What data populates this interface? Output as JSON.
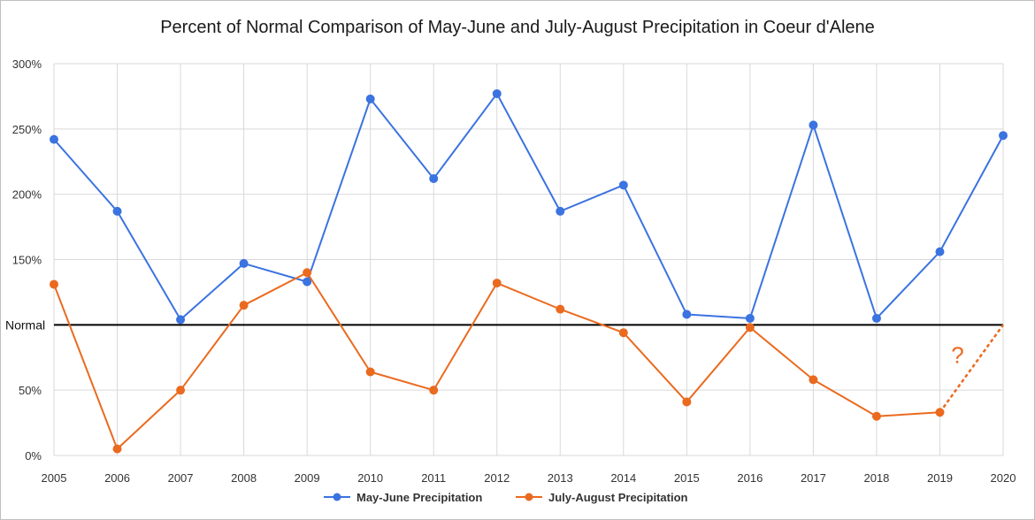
{
  "chart_data": {
    "type": "line",
    "title": "Percent of Normal Comparison of May-June and July-August Precipitation in Coeur d'Alene",
    "x": [
      "2005",
      "2006",
      "2007",
      "2008",
      "2009",
      "2010",
      "2011",
      "2012",
      "2013",
      "2014",
      "2015",
      "2016",
      "2017",
      "2018",
      "2019",
      "2020"
    ],
    "y_ticks": [
      "0%",
      "50%",
      "Normal",
      "150%",
      "200%",
      "250%",
      "300%"
    ],
    "ylim": [
      0,
      300
    ],
    "grid": "vertical and horizontal",
    "legend_position": "bottom",
    "series": [
      {
        "name": "May-June Precipitation",
        "color": "#3b73e0",
        "values": [
          242,
          187,
          104,
          147,
          133,
          273,
          212,
          277,
          187,
          207,
          108,
          105,
          253,
          105,
          156,
          245
        ]
      },
      {
        "name": "July-August Precipitation",
        "color": "#ea6a1f",
        "values": [
          131,
          5,
          50,
          115,
          140,
          64,
          50,
          132,
          112,
          94,
          41,
          98,
          58,
          30,
          33,
          null
        ]
      }
    ],
    "normal_line": {
      "label": "Normal",
      "value": 100,
      "color": "#000000"
    },
    "projection": {
      "from_x": "2019",
      "from_value": 33,
      "to_x": "2020",
      "to_value": 100,
      "annotation": "?"
    }
  }
}
